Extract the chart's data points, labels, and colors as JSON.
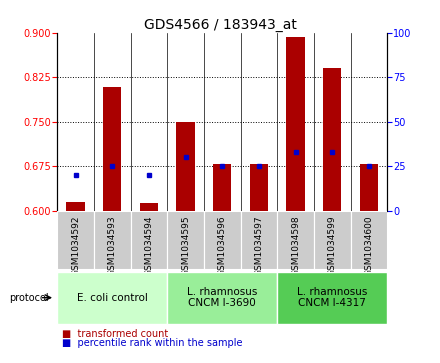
{
  "title": "GDS4566 / 183943_at",
  "samples": [
    "GSM1034592",
    "GSM1034593",
    "GSM1034594",
    "GSM1034595",
    "GSM1034596",
    "GSM1034597",
    "GSM1034598",
    "GSM1034599",
    "GSM1034600"
  ],
  "transformed_count": [
    0.614,
    0.808,
    0.613,
    0.75,
    0.679,
    0.679,
    0.893,
    0.84,
    0.679
  ],
  "percentile_rank": [
    20,
    25,
    20,
    30,
    25,
    25,
    33,
    33,
    25
  ],
  "ylim_left": [
    0.6,
    0.9
  ],
  "ylim_right": [
    0,
    100
  ],
  "yticks_left": [
    0.6,
    0.675,
    0.75,
    0.825,
    0.9
  ],
  "yticks_right": [
    0,
    25,
    50,
    75,
    100
  ],
  "protocols": [
    {
      "label": "E. coli control",
      "start": 0,
      "end": 3,
      "color": "#ccffcc"
    },
    {
      "label": "L. rhamnosus\nCNCM I-3690",
      "start": 3,
      "end": 6,
      "color": "#99ee99"
    },
    {
      "label": "L. rhamnosus\nCNCM I-4317",
      "start": 6,
      "end": 9,
      "color": "#55cc55"
    }
  ],
  "bar_color": "#aa0000",
  "dot_color": "#0000cc",
  "sample_bg_color": "#cccccc",
  "title_fontsize": 10,
  "tick_fontsize": 7,
  "sample_fontsize": 6.5,
  "legend_fontsize": 7,
  "proto_fontsize": 7.5
}
